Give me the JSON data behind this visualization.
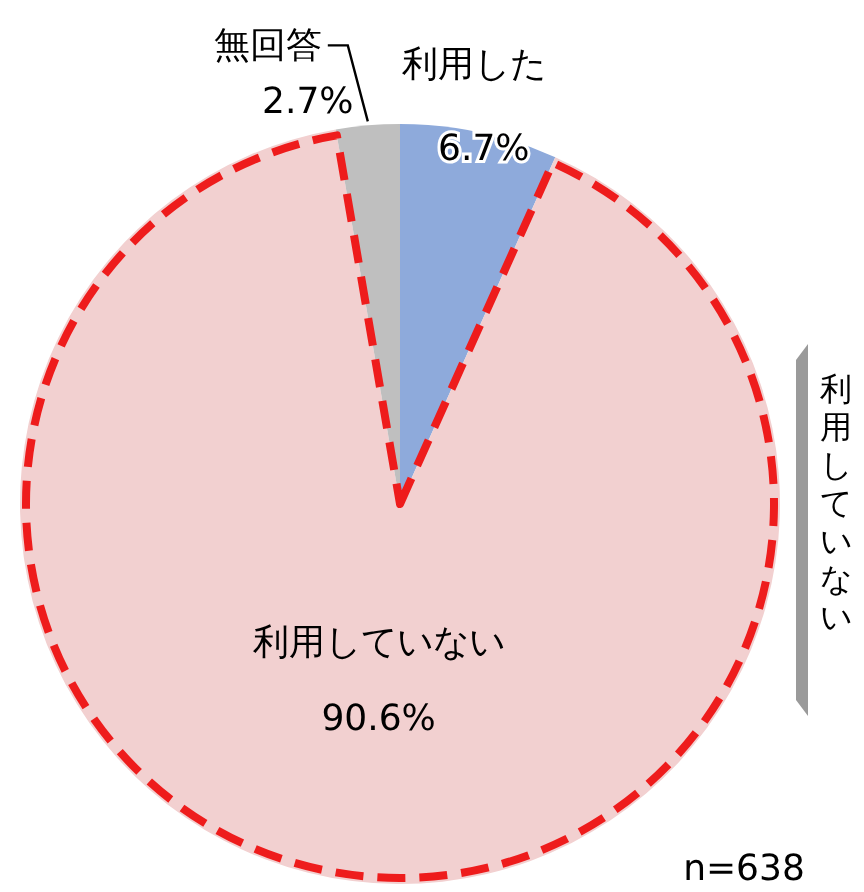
{
  "chart_data": {
    "type": "pie",
    "categories": [
      "利用した",
      "利用していない",
      "無回答"
    ],
    "values": [
      6.7,
      90.6,
      2.7
    ],
    "colors": [
      "#8eaadb",
      "#f2d0d0",
      "#bfbfbf"
    ],
    "value_labels": [
      "6.7%",
      "90.6%",
      "2.7%"
    ],
    "annotations": [
      "利用していない",
      "n=638"
    ]
  }
}
